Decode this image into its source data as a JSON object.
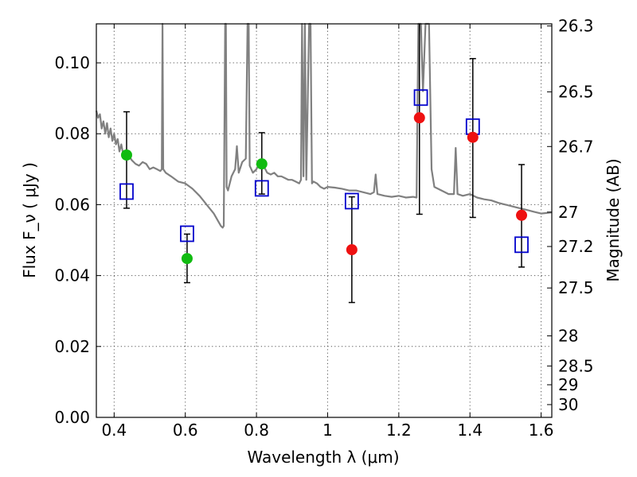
{
  "chart_data": {
    "type": "scatter",
    "xlabel": "Wavelength  λ (μm)",
    "ylabel": "Flux  F_ν  ( μJy )",
    "ylabel_right": "Magnitude (AB)",
    "xlim": [
      0.35,
      1.63
    ],
    "ylim": [
      0.0,
      0.111
    ],
    "grid": true,
    "x_ticks": [
      0.4,
      0.6,
      0.8,
      1.0,
      1.2,
      1.4,
      1.6
    ],
    "x_tick_labels": [
      "0.4",
      "0.6",
      "0.8",
      "1",
      "1.2",
      "1.4",
      "1.6"
    ],
    "y_ticks": [
      0.0,
      0.02,
      0.04,
      0.06,
      0.08,
      0.1
    ],
    "y_tick_labels": [
      "0.00",
      "0.02",
      "0.04",
      "0.06",
      "0.08",
      "0.10"
    ],
    "right_ticks": [
      {
        "label": "26.3",
        "flux": 0.1104
      },
      {
        "label": "26.5",
        "flux": 0.0918
      },
      {
        "label": "26.7",
        "flux": 0.0764
      },
      {
        "label": "27",
        "flux": 0.0579
      },
      {
        "label": "27.2",
        "flux": 0.0482
      },
      {
        "label": "27.5",
        "flux": 0.0365
      },
      {
        "label": "28",
        "flux": 0.023
      },
      {
        "label": "28.5",
        "flux": 0.0145
      },
      {
        "label": "29",
        "flux": 0.0092
      },
      {
        "label": "30",
        "flux": 0.0036
      }
    ],
    "colors": {
      "spectrum": "#808080",
      "green_points": "#11bb11",
      "red_points": "#ee1111",
      "model_squares": "#0000cc",
      "errorbar": "#000000"
    },
    "series": [
      {
        "kind": "spectrum",
        "points": [
          [
            0.35,
            0.0865
          ],
          [
            0.355,
            0.0845
          ],
          [
            0.36,
            0.0855
          ],
          [
            0.365,
            0.0815
          ],
          [
            0.37,
            0.0835
          ],
          [
            0.375,
            0.08
          ],
          [
            0.38,
            0.083
          ],
          [
            0.385,
            0.079
          ],
          [
            0.39,
            0.0815
          ],
          [
            0.395,
            0.078
          ],
          [
            0.4,
            0.08
          ],
          [
            0.405,
            0.077
          ],
          [
            0.41,
            0.0785
          ],
          [
            0.415,
            0.075
          ],
          [
            0.42,
            0.077
          ],
          [
            0.425,
            0.0745
          ],
          [
            0.43,
            0.075
          ],
          [
            0.435,
            0.0735
          ],
          [
            0.44,
            0.074
          ],
          [
            0.45,
            0.0725
          ],
          [
            0.46,
            0.0715
          ],
          [
            0.47,
            0.071
          ],
          [
            0.48,
            0.072
          ],
          [
            0.49,
            0.0715
          ],
          [
            0.5,
            0.07
          ],
          [
            0.51,
            0.0705
          ],
          [
            0.52,
            0.07
          ],
          [
            0.53,
            0.0695
          ],
          [
            0.534,
            0.07
          ],
          [
            0.536,
            0.111
          ],
          [
            0.538,
            0.07
          ],
          [
            0.545,
            0.069
          ],
          [
            0.56,
            0.068
          ],
          [
            0.58,
            0.0665
          ],
          [
            0.6,
            0.066
          ],
          [
            0.62,
            0.0645
          ],
          [
            0.64,
            0.0625
          ],
          [
            0.66,
            0.06
          ],
          [
            0.68,
            0.0575
          ],
          [
            0.7,
            0.054
          ],
          [
            0.705,
            0.0535
          ],
          [
            0.708,
            0.054
          ],
          [
            0.712,
            0.111
          ],
          [
            0.714,
            0.111
          ],
          [
            0.716,
            0.065
          ],
          [
            0.72,
            0.064
          ],
          [
            0.73,
            0.068
          ],
          [
            0.74,
            0.07
          ],
          [
            0.745,
            0.0765
          ],
          [
            0.75,
            0.069
          ],
          [
            0.76,
            0.072
          ],
          [
            0.77,
            0.073
          ],
          [
            0.775,
            0.111
          ],
          [
            0.778,
            0.111
          ],
          [
            0.781,
            0.071
          ],
          [
            0.79,
            0.069
          ],
          [
            0.8,
            0.07
          ],
          [
            0.81,
            0.072
          ],
          [
            0.82,
            0.071
          ],
          [
            0.83,
            0.069
          ],
          [
            0.84,
            0.0685
          ],
          [
            0.85,
            0.069
          ],
          [
            0.86,
            0.068
          ],
          [
            0.87,
            0.068
          ],
          [
            0.88,
            0.0675
          ],
          [
            0.89,
            0.067
          ],
          [
            0.9,
            0.067
          ],
          [
            0.91,
            0.0665
          ],
          [
            0.92,
            0.066
          ],
          [
            0.925,
            0.067
          ],
          [
            0.928,
            0.111
          ],
          [
            0.932,
            0.068
          ],
          [
            0.936,
            0.111
          ],
          [
            0.94,
            0.067
          ],
          [
            0.948,
            0.111
          ],
          [
            0.952,
            0.111
          ],
          [
            0.956,
            0.066
          ],
          [
            0.96,
            0.0665
          ],
          [
            0.97,
            0.066
          ],
          [
            0.98,
            0.065
          ],
          [
            0.99,
            0.0645
          ],
          [
            1.0,
            0.065
          ],
          [
            1.02,
            0.0648
          ],
          [
            1.04,
            0.0645
          ],
          [
            1.06,
            0.064
          ],
          [
            1.08,
            0.064
          ],
          [
            1.1,
            0.0635
          ],
          [
            1.12,
            0.063
          ],
          [
            1.13,
            0.0635
          ],
          [
            1.135,
            0.0685
          ],
          [
            1.14,
            0.063
          ],
          [
            1.16,
            0.0625
          ],
          [
            1.18,
            0.0622
          ],
          [
            1.2,
            0.0625
          ],
          [
            1.22,
            0.062
          ],
          [
            1.24,
            0.0622
          ],
          [
            1.25,
            0.062
          ],
          [
            1.255,
            0.111
          ],
          [
            1.262,
            0.111
          ],
          [
            1.268,
            0.092
          ],
          [
            1.275,
            0.111
          ],
          [
            1.285,
            0.111
          ],
          [
            1.292,
            0.07
          ],
          [
            1.3,
            0.065
          ],
          [
            1.32,
            0.064
          ],
          [
            1.34,
            0.063
          ],
          [
            1.355,
            0.063
          ],
          [
            1.36,
            0.076
          ],
          [
            1.365,
            0.063
          ],
          [
            1.38,
            0.0625
          ],
          [
            1.4,
            0.063
          ],
          [
            1.42,
            0.062
          ],
          [
            1.44,
            0.0615
          ],
          [
            1.46,
            0.0612
          ],
          [
            1.48,
            0.0605
          ],
          [
            1.5,
            0.06
          ],
          [
            1.52,
            0.0595
          ],
          [
            1.54,
            0.059
          ],
          [
            1.56,
            0.0585
          ],
          [
            1.58,
            0.058
          ],
          [
            1.6,
            0.0575
          ],
          [
            1.63,
            0.0578
          ]
        ]
      },
      {
        "kind": "observed",
        "color": "green",
        "points": [
          {
            "x": 0.435,
            "y": 0.074,
            "yerr_low": 0.059,
            "yerr_high": 0.0862
          },
          {
            "x": 0.605,
            "y": 0.0448,
            "yerr_low": 0.038,
            "yerr_high": 0.0517
          },
          {
            "x": 0.815,
            "y": 0.0715,
            "yerr_low": 0.063,
            "yerr_high": 0.0803
          }
        ]
      },
      {
        "kind": "observed",
        "color": "red",
        "points": [
          {
            "x": 1.068,
            "y": 0.0473,
            "yerr_low": 0.0324,
            "yerr_high": 0.0622
          },
          {
            "x": 1.258,
            "y": 0.0845,
            "yerr_low": 0.0573,
            "yerr_high": 0.111
          },
          {
            "x": 1.408,
            "y": 0.079,
            "yerr_low": 0.0564,
            "yerr_high": 0.1012
          },
          {
            "x": 1.545,
            "y": 0.057,
            "yerr_low": 0.0424,
            "yerr_high": 0.0713
          }
        ]
      },
      {
        "kind": "model",
        "color": "blue",
        "points": [
          {
            "x": 0.435,
            "y": 0.0637
          },
          {
            "x": 0.605,
            "y": 0.0518
          },
          {
            "x": 0.815,
            "y": 0.0646
          },
          {
            "x": 1.068,
            "y": 0.061
          },
          {
            "x": 1.262,
            "y": 0.0902
          },
          {
            "x": 1.408,
            "y": 0.082
          },
          {
            "x": 1.545,
            "y": 0.0487
          }
        ]
      }
    ]
  }
}
